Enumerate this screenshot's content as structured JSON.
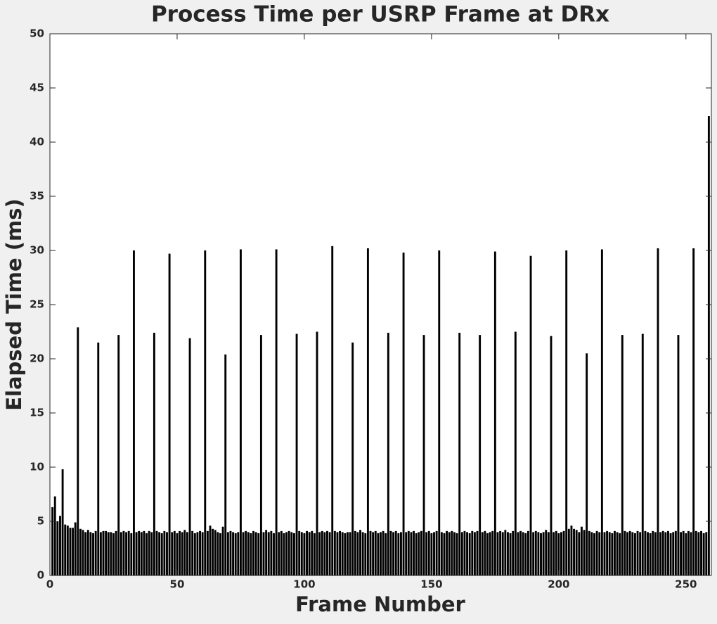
{
  "chart_data": {
    "type": "bar",
    "title": "Process Time per USRP Frame at DRx",
    "xlabel": "Frame Number",
    "ylabel": "Elapsed Time (ms)",
    "color": "#000000",
    "x": [
      1,
      2,
      3,
      4,
      5,
      6,
      7,
      8,
      9,
      10,
      11,
      12,
      13,
      14,
      15,
      16,
      17,
      18,
      19,
      20,
      21,
      22,
      23,
      24,
      25,
      26,
      27,
      28,
      29,
      30,
      31,
      32,
      33,
      34,
      35,
      36,
      37,
      38,
      39,
      40,
      41,
      42,
      43,
      44,
      45,
      46,
      47,
      48,
      49,
      50,
      51,
      52,
      53,
      54,
      55,
      56,
      57,
      58,
      59,
      60,
      61,
      62,
      63,
      64,
      65,
      66,
      67,
      68,
      69,
      70,
      71,
      72,
      73,
      74,
      75,
      76,
      77,
      78,
      79,
      80,
      81,
      82,
      83,
      84,
      85,
      86,
      87,
      88,
      89,
      90,
      91,
      92,
      93,
      94,
      95,
      96,
      97,
      98,
      99,
      100,
      101,
      102,
      103,
      104,
      105,
      106,
      107,
      108,
      109,
      110,
      111,
      112,
      113,
      114,
      115,
      116,
      117,
      118,
      119,
      120,
      121,
      122,
      123,
      124,
      125,
      126,
      127,
      128,
      129,
      130,
      131,
      132,
      133,
      134,
      135,
      136,
      137,
      138,
      139,
      140,
      141,
      142,
      143,
      144,
      145,
      146,
      147,
      148,
      149,
      150,
      151,
      152,
      153,
      154,
      155,
      156,
      157,
      158,
      159,
      160,
      161,
      162,
      163,
      164,
      165,
      166,
      167,
      168,
      169,
      170,
      171,
      172,
      173,
      174,
      175,
      176,
      177,
      178,
      179,
      180,
      181,
      182,
      183,
      184,
      185,
      186,
      187,
      188,
      189,
      190,
      191,
      192,
      193,
      194,
      195,
      196,
      197,
      198,
      199,
      200,
      201,
      202,
      203,
      204,
      205,
      206,
      207,
      208,
      209,
      210,
      211,
      212,
      213,
      214,
      215,
      216,
      217,
      218,
      219,
      220,
      221,
      222,
      223,
      224,
      225,
      226,
      227,
      228,
      229,
      230,
      231,
      232,
      233,
      234,
      235,
      236,
      237,
      238,
      239,
      240,
      241,
      242,
      243,
      244,
      245,
      246,
      247,
      248,
      249,
      250,
      251,
      252,
      253,
      254,
      255,
      256,
      257,
      258,
      259
    ],
    "values": [
      6.3,
      7.3,
      5.0,
      5.5,
      9.8,
      4.7,
      4.6,
      4.4,
      4.4,
      4.9,
      22.9,
      4.3,
      4.2,
      4.0,
      4.2,
      4.0,
      3.9,
      4.1,
      21.5,
      4.0,
      4.1,
      4.1,
      4.0,
      4.0,
      3.9,
      4.1,
      22.2,
      4.0,
      4.1,
      4.0,
      4.1,
      3.9,
      30.0,
      4.0,
      4.1,
      4.0,
      4.1,
      3.9,
      4.1,
      4.0,
      22.4,
      4.1,
      4.0,
      3.9,
      4.1,
      4.0,
      29.7,
      4.0,
      4.1,
      3.9,
      4.1,
      4.0,
      4.2,
      4.0,
      21.9,
      4.1,
      3.9,
      4.0,
      4.1,
      4.0,
      30.0,
      4.1,
      4.6,
      4.3,
      4.2,
      4.0,
      3.9,
      4.5,
      20.4,
      4.0,
      4.1,
      4.0,
      3.9,
      4.0,
      30.1,
      4.0,
      4.1,
      4.0,
      3.9,
      4.1,
      4.0,
      3.9,
      22.2,
      4.0,
      4.2,
      4.0,
      4.1,
      3.9,
      30.1,
      4.0,
      4.1,
      3.9,
      4.0,
      4.1,
      4.0,
      3.9,
      22.3,
      4.1,
      4.0,
      3.9,
      4.1,
      4.0,
      4.1,
      3.9,
      22.5,
      4.0,
      4.1,
      4.0,
      4.1,
      4.0,
      30.4,
      4.1,
      4.0,
      4.1,
      4.0,
      3.9,
      4.0,
      4.0,
      21.5,
      4.1,
      4.0,
      4.2,
      4.0,
      3.9,
      30.2,
      4.1,
      4.0,
      4.1,
      3.9,
      4.0,
      4.1,
      3.9,
      22.4,
      4.1,
      4.0,
      4.1,
      3.9,
      4.0,
      29.8,
      4.0,
      4.1,
      4.0,
      4.1,
      3.9,
      4.0,
      4.1,
      22.2,
      4.0,
      4.1,
      3.9,
      4.0,
      4.1,
      30.0,
      4.0,
      3.9,
      4.1,
      4.0,
      4.1,
      4.0,
      3.9,
      22.4,
      4.0,
      4.1,
      4.0,
      3.9,
      4.1,
      4.0,
      4.1,
      22.2,
      4.0,
      4.1,
      3.9,
      4.0,
      4.1,
      29.9,
      4.0,
      4.1,
      4.0,
      4.2,
      4.0,
      3.9,
      4.1,
      22.5,
      4.0,
      4.1,
      4.0,
      3.9,
      4.1,
      29.5,
      4.0,
      4.1,
      4.0,
      3.9,
      4.0,
      4.2,
      4.0,
      22.1,
      4.0,
      4.1,
      3.9,
      4.0,
      4.1,
      30.0,
      4.3,
      4.6,
      4.3,
      4.2,
      4.0,
      4.5,
      4.2,
      20.5,
      4.1,
      4.0,
      3.9,
      4.1,
      4.0,
      30.1,
      4.0,
      4.1,
      4.0,
      3.9,
      4.1,
      4.0,
      3.9,
      22.2,
      4.1,
      4.0,
      4.1,
      4.0,
      3.9,
      4.1,
      4.0,
      22.3,
      4.1,
      4.0,
      3.9,
      4.1,
      4.0,
      30.2,
      4.0,
      4.1,
      4.0,
      4.1,
      3.9,
      4.0,
      4.1,
      22.2,
      4.0,
      4.1,
      3.9,
      4.1,
      4.0,
      30.2,
      4.1,
      4.0,
      4.1,
      3.9,
      4.0,
      42.4
    ],
    "xlim": [
      0,
      260
    ],
    "xticks": [
      0,
      50,
      100,
      150,
      200,
      250
    ],
    "ylim": [
      0,
      50
    ],
    "yticks": [
      0,
      5,
      10,
      15,
      20,
      25,
      30,
      35,
      40,
      45,
      50
    ]
  }
}
